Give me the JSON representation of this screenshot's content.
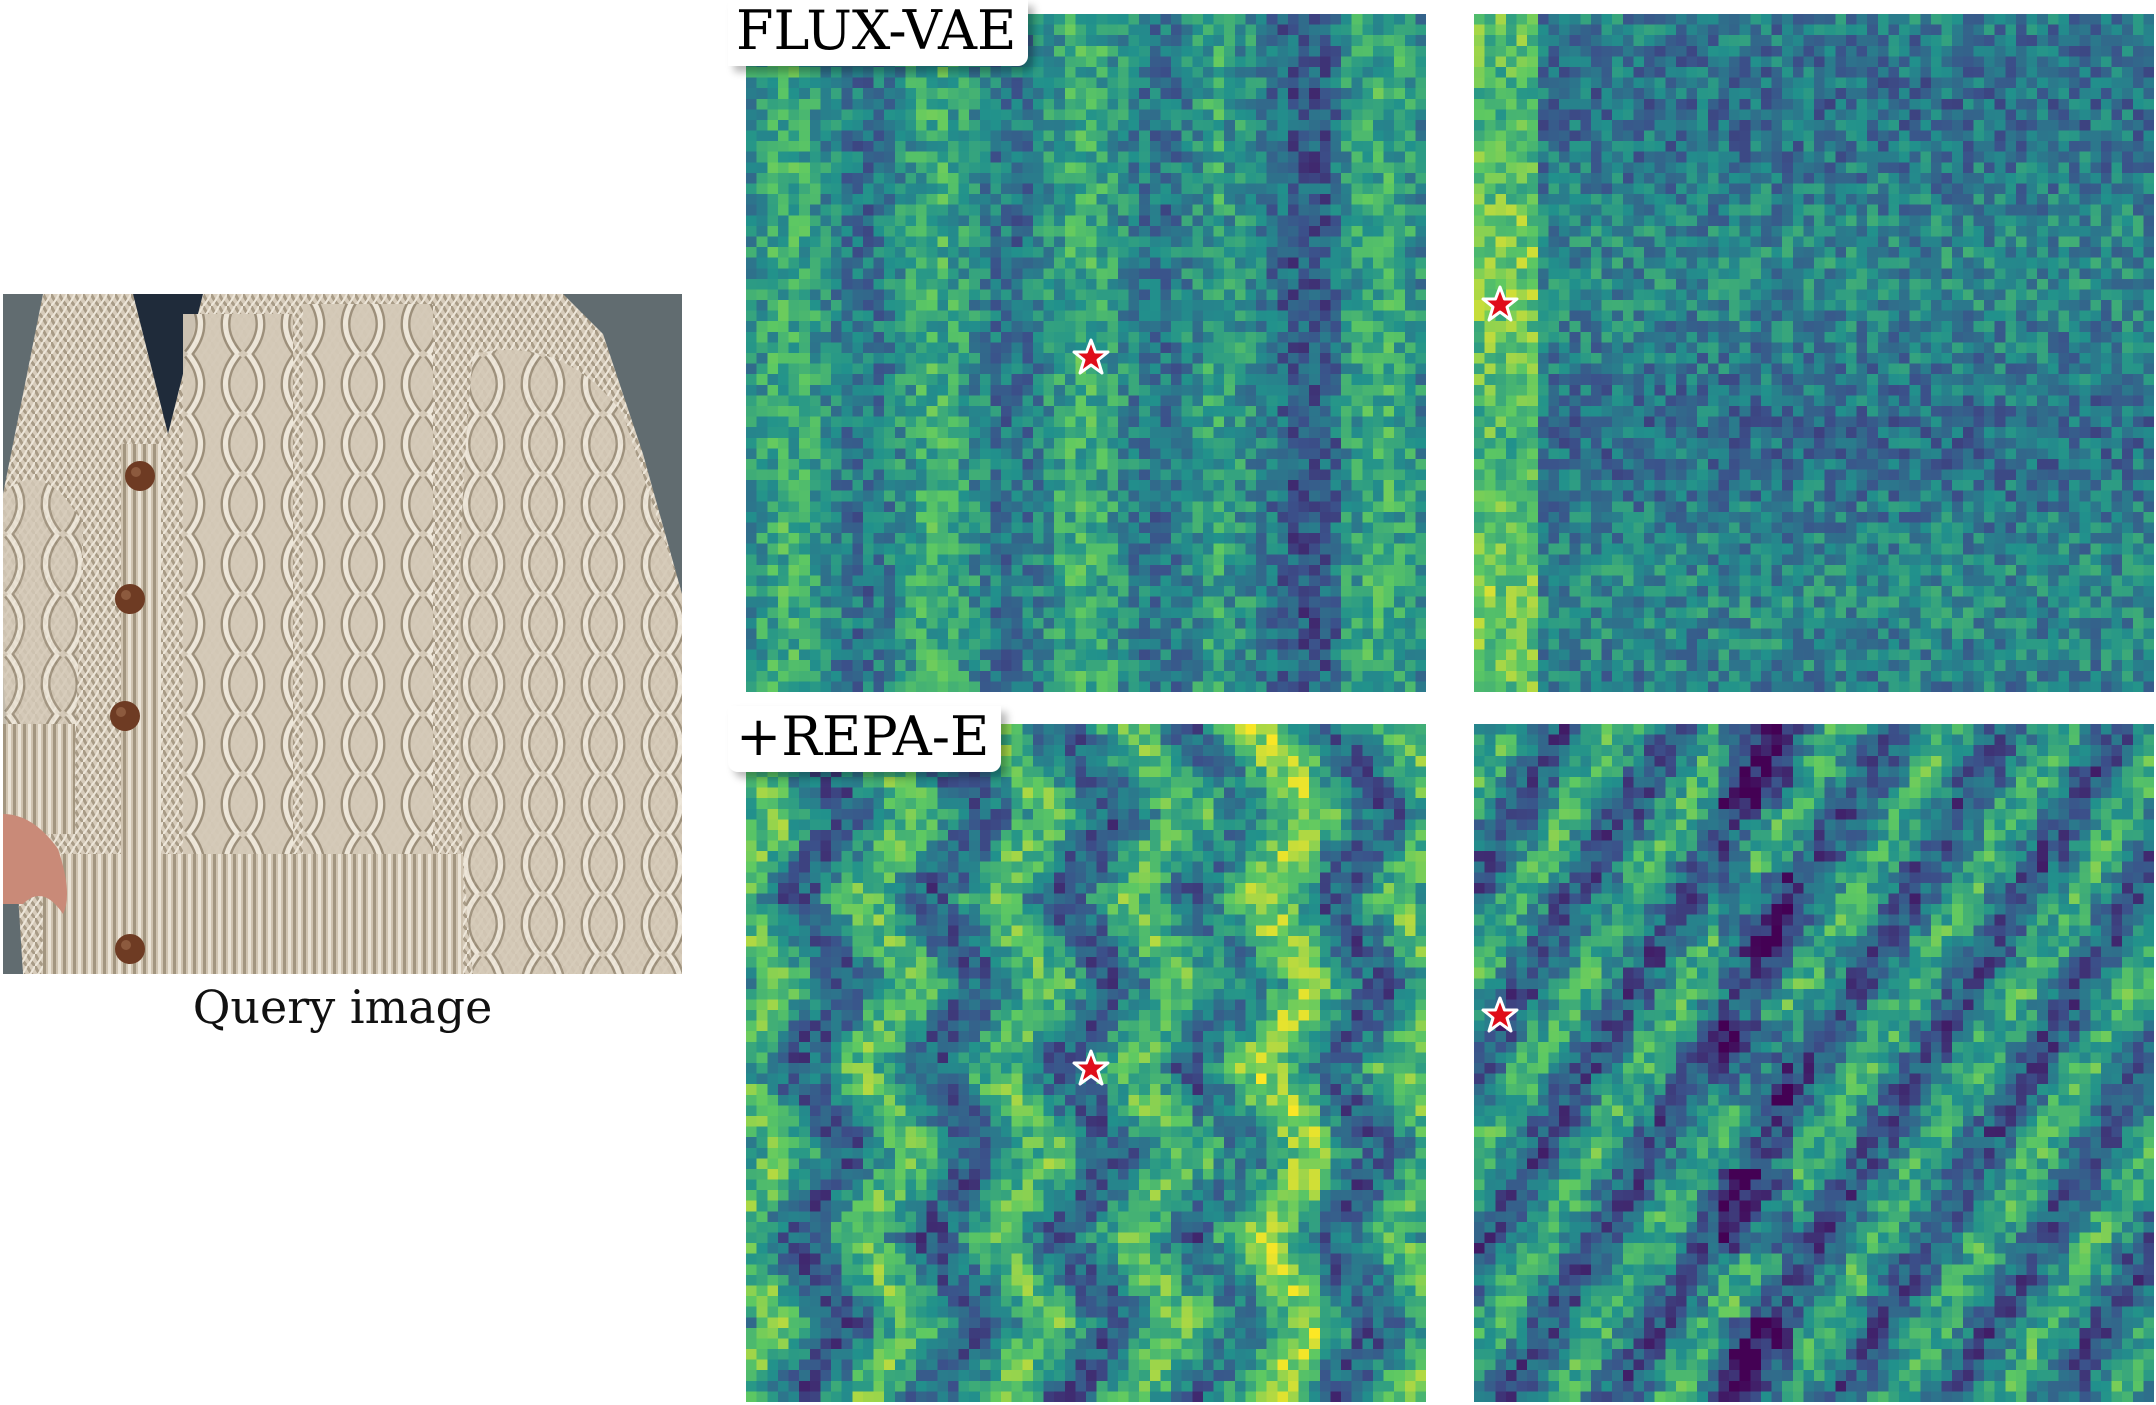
{
  "query": {
    "caption": "Query image",
    "colors": {
      "wall": "#5f6a6e",
      "wool": "#d9cfbf",
      "wool_shadow": "#9c907c",
      "wool_highlight": "#f1ebdf",
      "button": "#6e3b23",
      "shirt": "#1f2b3a",
      "skin": "#c98a78"
    }
  },
  "rows": [
    {
      "label": "FLUX-VAE"
    },
    {
      "label": "+REPA-E"
    }
  ],
  "heatmaps": {
    "colormap": "viridis",
    "marker": {
      "shape": "star",
      "fill": "#e00d1a",
      "stroke": "#ffffff"
    }
  }
}
